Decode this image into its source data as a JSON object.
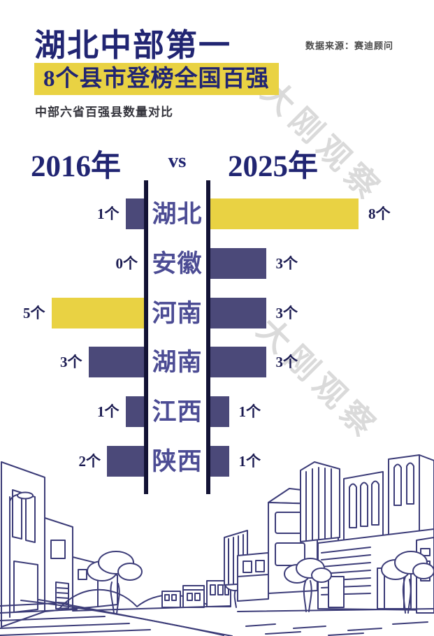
{
  "header": {
    "title": "湖北中部第一",
    "subtitle_highlight": "8个县市登榜全国百强",
    "description": "中部六省百强县数量对比",
    "source": "数据来源：赛迪顾问"
  },
  "watermark": {
    "text": "大刚观察"
  },
  "colors": {
    "navy": "#212572",
    "bar_slate": "#4b4979",
    "bar_yellow": "#e9d243",
    "divider": "#131335",
    "category_text": "#4c4c94",
    "value_text": "#1c1c52",
    "watermark_gray": "#dadada",
    "sketch_line": "#3c3c78",
    "source_text": "#4a4a4a"
  },
  "chart_data": {
    "type": "bar",
    "orientation": "horizontal-diverging",
    "title": "中部六省百强县数量对比",
    "unit": "个",
    "left_header": "2016年",
    "center_label": "vs",
    "right_header": "2025年",
    "categories": [
      "湖北",
      "安徽",
      "河南",
      "湖南",
      "江西",
      "陕西"
    ],
    "series": [
      {
        "name": "2016年",
        "values": [
          1,
          0,
          5,
          3,
          1,
          2
        ]
      },
      {
        "name": "2025年",
        "values": [
          8,
          3,
          3,
          3,
          1,
          1
        ]
      }
    ],
    "value_labels": {
      "left": [
        "1个",
        "0个",
        "5个",
        "3个",
        "1个",
        "2个"
      ],
      "right": [
        "8个",
        "3个",
        "3个",
        "3个",
        "1个",
        "1个"
      ]
    },
    "highlights": [
      {
        "category": "湖北",
        "side": "right",
        "color": "#e9d243"
      },
      {
        "category": "河南",
        "side": "left",
        "color": "#e9d243"
      }
    ],
    "xlim_units": [
      0,
      8
    ],
    "legend": "none",
    "grid": false
  }
}
